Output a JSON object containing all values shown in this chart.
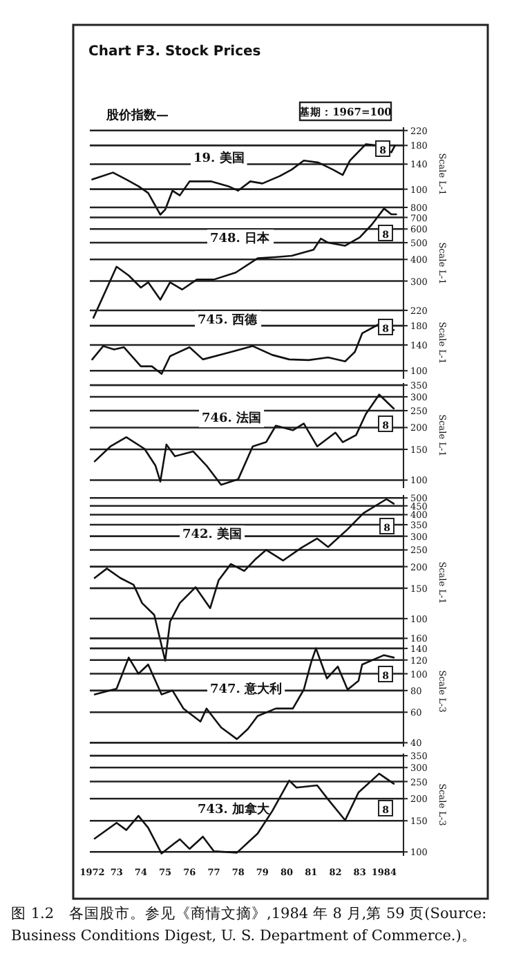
{
  "chart_data": [
    {
      "type": "line",
      "title": "19. 美国",
      "ylabel": "Scale L-1",
      "log": true,
      "grid": "y",
      "tick_labels": "y",
      "color": "#111111",
      "line_style": "solid",
      "xlim": [
        1971.9,
        1984.8
      ],
      "ylim": [
        65,
        230
      ],
      "yticks": [
        100,
        140,
        180,
        220
      ],
      "x": [
        1972.0,
        1972.85,
        1973.4,
        1973.9,
        1974.3,
        1974.8,
        1975.0,
        1975.3,
        1975.6,
        1976.0,
        1976.9,
        1977.6,
        1978.0,
        1978.5,
        1979.0,
        1979.7,
        1980.2,
        1980.7,
        1981.3,
        1981.9,
        1982.3,
        1982.6,
        1983.25,
        1983.7,
        1984.3,
        1984.45
      ],
      "values": [
        114,
        125,
        114,
        104,
        95,
        71,
        76,
        98,
        92,
        111,
        111,
        104,
        98,
        111,
        108,
        119,
        130,
        147,
        143,
        130,
        121,
        147,
        183,
        180,
        164,
        180
      ],
      "annotations": [
        "Chart F3.  Stock Prices",
        "股价指数—",
        "基期：1967=100",
        "8"
      ]
    },
    {
      "type": "line",
      "title": "748. 日本",
      "ylabel": "Scale L-1",
      "log": true,
      "grid": "y",
      "tick_labels": "y",
      "color": "#111111",
      "line_style": "solid",
      "xlim": [
        1971.9,
        1984.8
      ],
      "ylim": [
        180,
        800
      ],
      "yticks": [
        300,
        400,
        500,
        600,
        700,
        800
      ],
      "x": [
        1972.05,
        1973.0,
        1973.5,
        1974.0,
        1974.3,
        1974.8,
        1975.2,
        1975.7,
        1976.3,
        1977.0,
        1977.9,
        1978.8,
        1979.6,
        1980.2,
        1981.1,
        1981.4,
        1981.7,
        1982.4,
        1983.0,
        1983.5,
        1984.0,
        1984.3,
        1984.5
      ],
      "values": [
        184,
        363,
        323,
        275,
        295,
        234,
        295,
        268,
        306,
        306,
        336,
        406,
        413,
        420,
        455,
        528,
        500,
        480,
        537,
        637,
        788,
        730,
        730
      ],
      "annotations": [
        "8"
      ]
    },
    {
      "type": "line",
      "title": "745. 西德",
      "ylabel": "Scale L-1",
      "log": true,
      "grid": "y",
      "tick_labels": "y",
      "color": "#111111",
      "line_style": "solid",
      "xlim": [
        1971.9,
        1984.8
      ],
      "ylim": [
        90,
        230
      ],
      "yticks": [
        100,
        140,
        180,
        220
      ],
      "x": [
        1972.0,
        1972.45,
        1972.9,
        1973.3,
        1974.0,
        1974.45,
        1974.85,
        1975.2,
        1976.0,
        1976.55,
        1977.45,
        1978.6,
        1979.4,
        1980.1,
        1980.9,
        1981.7,
        1982.4,
        1982.8,
        1983.1,
        1983.8,
        1984.4
      ],
      "values": [
        116,
        138,
        132,
        136,
        106,
        106,
        96,
        121,
        136,
        116,
        125,
        138,
        123,
        116,
        115,
        119,
        113,
        128,
        163,
        184,
        170
      ],
      "annotations": [
        "8"
      ]
    },
    {
      "type": "line",
      "title": "746. 法国",
      "ylabel": "Scale L-1",
      "log": true,
      "grid": "y",
      "tick_labels": "y",
      "color": "#111111",
      "line_style": "solid",
      "xlim": [
        1971.9,
        1984.8
      ],
      "ylim": [
        90,
        360
      ],
      "yticks": [
        100,
        150,
        200,
        250,
        300,
        350
      ],
      "x": [
        1972.1,
        1972.75,
        1973.4,
        1974.15,
        1974.6,
        1974.8,
        1975.05,
        1975.4,
        1976.15,
        1976.7,
        1977.3,
        1978.0,
        1978.6,
        1979.15,
        1979.55,
        1980.25,
        1980.7,
        1981.25,
        1982.0,
        1982.3,
        1982.85,
        1983.25,
        1983.8,
        1984.4
      ],
      "values": [
        128,
        156,
        176,
        151,
        121,
        98,
        160,
        137,
        146,
        121,
        94,
        101,
        156,
        165,
        205,
        193,
        211,
        156,
        187,
        165,
        181,
        239,
        309,
        257
      ],
      "annotations": [
        "8"
      ]
    },
    {
      "type": "line",
      "title": "742. 美国",
      "ylabel": "Scale L-1",
      "log": true,
      "grid": "y",
      "tick_labels": "y",
      "color": "#111111",
      "line_style": "solid",
      "xlim": [
        1971.9,
        1984.8
      ],
      "ylim": [
        50,
        520
      ],
      "yticks": [
        100,
        150,
        200,
        250,
        300,
        350,
        400,
        450,
        500
      ],
      "x": [
        1972.1,
        1972.6,
        1973.15,
        1973.7,
        1974.05,
        1974.55,
        1975.0,
        1975.2,
        1975.6,
        1976.25,
        1976.85,
        1977.2,
        1977.7,
        1978.25,
        1978.7,
        1979.15,
        1979.85,
        1980.6,
        1981.25,
        1981.7,
        1982.5,
        1983.15,
        1984.1,
        1984.4
      ],
      "values": [
        172,
        195,
        172,
        157,
        123,
        105,
        57,
        96,
        123,
        152,
        115,
        167,
        207,
        189,
        220,
        250,
        217,
        257,
        291,
        260,
        329,
        408,
        492,
        463
      ],
      "annotations": [
        "8"
      ]
    },
    {
      "type": "line",
      "title": "747. 意大利",
      "ylabel": "Scale L-3",
      "log": true,
      "grid": "y",
      "tick_labels": "y",
      "color": "#111111",
      "line_style": "solid",
      "xlim": [
        1971.9,
        1984.8
      ],
      "ylim": [
        38,
        165
      ],
      "yticks": [
        40,
        60,
        80,
        100,
        120,
        140,
        160
      ],
      "x": [
        1972.1,
        1973.0,
        1973.5,
        1973.9,
        1974.3,
        1974.85,
        1975.3,
        1975.75,
        1976.45,
        1976.7,
        1977.3,
        1977.95,
        1978.4,
        1978.8,
        1979.55,
        1980.25,
        1980.7,
        1981.0,
        1981.2,
        1981.65,
        1982.1,
        1982.5,
        1982.95,
        1983.1,
        1984.0,
        1984.4
      ],
      "values": [
        76,
        82,
        124,
        100,
        113,
        76,
        80,
        63,
        53,
        63,
        49,
        42,
        48,
        57,
        63,
        63,
        81,
        116,
        140,
        94,
        110,
        81,
        91,
        113,
        128,
        124
      ],
      "annotations": [
        "8"
      ]
    },
    {
      "type": "line",
      "title": "743. 加拿大",
      "ylabel": "Scale L-3",
      "log": true,
      "grid": "y",
      "color": "#111111",
      "line_style": "solid",
      "xlim": [
        1971.9,
        1984.8
      ],
      "ylim": [
        95,
        360
      ],
      "yticks": [
        100,
        150,
        200,
        250,
        300,
        350
      ],
      "xticks": [
        1972,
        {
          "value": 1973,
          "label": "73"
        },
        {
          "value": 1974,
          "label": "74"
        },
        {
          "value": 1975,
          "label": "75"
        },
        {
          "value": 1976,
          "label": "76"
        },
        {
          "value": 1977,
          "label": "77"
        },
        {
          "value": 1978,
          "label": "78"
        },
        {
          "value": 1979,
          "label": "79"
        },
        {
          "value": 1980,
          "label": "80"
        },
        {
          "value": 1981,
          "label": "81"
        },
        {
          "value": 1982,
          "label": "82"
        },
        {
          "value": 1983,
          "label": "83"
        },
        1984
      ],
      "x": [
        1972.1,
        1973.0,
        1973.4,
        1973.9,
        1974.3,
        1974.85,
        1975.6,
        1976.0,
        1976.55,
        1977.0,
        1977.95,
        1978.8,
        1979.4,
        1980.1,
        1980.4,
        1981.25,
        1981.7,
        1982.4,
        1982.95,
        1983.8,
        1984.4
      ],
      "values": [
        119,
        146,
        133,
        160,
        137,
        98,
        118,
        104,
        122,
        101,
        99,
        127,
        170,
        253,
        231,
        238,
        198,
        151,
        217,
        277,
        243
      ],
      "annotations": [
        "8",
        "图 1.2　各国股市。参见《商情文摘》,1984 年 8 月,第 59 页(Source: Business Conditions Digest, U. S. Department of Commerce.)。"
      ]
    }
  ]
}
